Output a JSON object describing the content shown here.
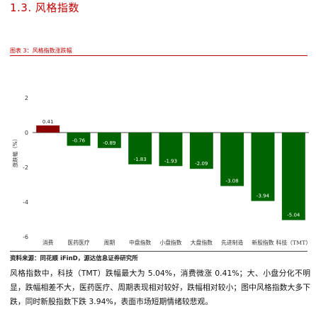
{
  "section_title": "1.3. 风格指数",
  "figure_caption": "图表 3：风格指数涨跌幅",
  "source": "资料来源：同花顺 iFinD，源达信息证券研究所",
  "paragraph": "风格指数中，科技（TMT）跌幅最大为 5.04%，消费微涨 0.41%；大、小盘分化不明显，跌幅相差不大，医药医疗、周期表现相对较好，跌幅相对较小；图中风格指数大多下跌，同时新股指数下跌 3.94%，表面市场短期情绪较悲观。",
  "chart_data": {
    "type": "bar",
    "categories": [
      "消费",
      "医药医疗",
      "周期",
      "中盘指数",
      "小盘指数",
      "大盘指数",
      "先进制造",
      "新股指数",
      "科技（TMT）"
    ],
    "values": [
      0.41,
      -0.76,
      -0.89,
      -1.83,
      -1.93,
      -2.09,
      -3.08,
      -3.94,
      -5.04
    ],
    "value_labels": [
      "0.41",
      "-0.76",
      "-0.89",
      "-1.83",
      "-1.93",
      "-2.09",
      "-3.08",
      "-3.94",
      "-5.04"
    ],
    "ylabel": "涨跌幅（%）",
    "ylim": [
      -6,
      2
    ],
    "yticks": [
      "2",
      "0",
      "-2",
      "-4",
      "-6"
    ],
    "ytick_values": [
      2,
      0,
      -2,
      -4,
      -6
    ],
    "grid": false,
    "colors": {
      "positive": "#8b0000",
      "negative": "#006400"
    }
  }
}
